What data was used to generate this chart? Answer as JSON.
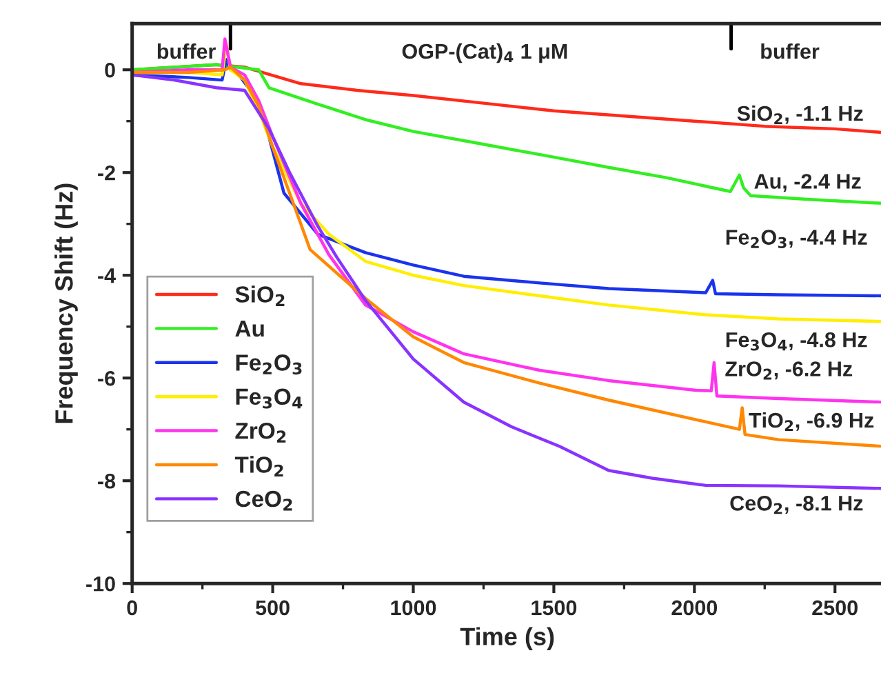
{
  "chart_data": {
    "type": "line",
    "xlabel": "Time (s)",
    "ylabel": "Frequency Shift (Hz)",
    "xlim": [
      0,
      2670
    ],
    "xticks": [
      0,
      500,
      1000,
      1500,
      2000,
      2500
    ],
    "ylim": [
      -10,
      0.9
    ],
    "yticks": [
      0,
      -2,
      -4,
      -6,
      -8,
      -10
    ],
    "grid": false,
    "legend": "left",
    "marker": "none",
    "line_style": "solid",
    "annotations": [
      "buffer",
      "OGP-(Cat)$_{4}$ 1 μM",
      "buffer",
      "SiO$_{2}$, -1.1 Hz",
      "Au, -2.4 Hz",
      "Fe$_{2}$O$_{3}$, -4.4 Hz",
      "Fe$_{3}$O$_{4}$, -4.8 Hz",
      "ZrO$_{2}$, -6.2 Hz",
      "TiO$_{2}$, -6.9 Hz",
      "CeO$_{2}$, -8.1 Hz"
    ],
    "series": [
      {
        "name": "SiO$_{2}$",
        "color": "#ff2a1a",
        "x": [
          0,
          150,
          300,
          400,
          600,
          800,
          1000,
          1250,
          1500,
          1750,
          2000,
          2250,
          2500,
          2670
        ],
        "values": [
          0.0,
          0.05,
          0.1,
          0.05,
          -0.27,
          -0.4,
          -0.5,
          -0.65,
          -0.8,
          -0.9,
          -1.0,
          -1.1,
          -1.15,
          -1.22
        ]
      },
      {
        "name": "Au",
        "color": "#33ee22",
        "x": [
          0,
          150,
          300,
          450,
          487,
          650,
          830,
          1000,
          1250,
          1500,
          1695,
          1900,
          2128,
          2160,
          2175,
          2200,
          2400,
          2670
        ],
        "values": [
          0.0,
          0.05,
          0.1,
          0.0,
          -0.35,
          -0.65,
          -0.97,
          -1.2,
          -1.45,
          -1.7,
          -1.9,
          -2.1,
          -2.37,
          -2.05,
          -2.3,
          -2.45,
          -2.52,
          -2.6
        ]
      },
      {
        "name": "Fe$_{2}$O$_{3}$",
        "color": "#1a33ee",
        "x": [
          0,
          200,
          320,
          335,
          350,
          380,
          420,
          470,
          540,
          660,
          830,
          1000,
          1180,
          1450,
          1695,
          2040,
          2065,
          2075,
          2300,
          2670
        ],
        "values": [
          -0.1,
          -0.15,
          -0.2,
          0.2,
          0.0,
          -0.1,
          -0.4,
          -0.97,
          -2.4,
          -3.2,
          -3.56,
          -3.8,
          -4.02,
          -4.15,
          -4.26,
          -4.34,
          -4.1,
          -4.36,
          -4.38,
          -4.4
        ]
      },
      {
        "name": "Fe$_{3}$O$_{4}$",
        "color": "#ffee00",
        "x": [
          0,
          200,
          320,
          335,
          350,
          400,
          450,
          500,
          600,
          700,
          830,
          1000,
          1180,
          1450,
          1695,
          2040,
          2300,
          2670
        ],
        "values": [
          -0.05,
          -0.05,
          -0.1,
          0.5,
          0.0,
          -0.2,
          -0.8,
          -1.5,
          -2.6,
          -3.2,
          -3.73,
          -4.0,
          -4.2,
          -4.4,
          -4.58,
          -4.77,
          -4.85,
          -4.9
        ]
      },
      {
        "name": "ZrO$_{2}$",
        "color": "#ff33ee",
        "x": [
          0,
          200,
          320,
          330,
          350,
          400,
          450,
          500,
          600,
          700,
          830,
          1000,
          1180,
          1450,
          1695,
          2005,
          2060,
          2070,
          2080,
          2300,
          2670
        ],
        "values": [
          -0.05,
          0.0,
          0.0,
          0.6,
          0.05,
          -0.1,
          -0.6,
          -1.3,
          -2.6,
          -3.6,
          -4.58,
          -5.1,
          -5.53,
          -5.85,
          -6.05,
          -6.24,
          -6.25,
          -5.7,
          -6.35,
          -6.4,
          -6.47
        ]
      },
      {
        "name": "TiO$_{2}$",
        "color": "#ff8800",
        "x": [
          0,
          200,
          330,
          350,
          400,
          450,
          500,
          600,
          633,
          830,
          1000,
          1180,
          1450,
          1695,
          2160,
          2170,
          2180,
          2300,
          2670
        ],
        "values": [
          -0.05,
          -0.05,
          0.0,
          0.05,
          -0.2,
          -0.7,
          -1.5,
          -3.0,
          -3.5,
          -4.45,
          -5.2,
          -5.7,
          -6.1,
          -6.43,
          -7.0,
          -6.58,
          -7.1,
          -7.2,
          -7.33
        ]
      },
      {
        "name": "CeO$_{2}$",
        "color": "#8833ff",
        "x": [
          0,
          150,
          300,
          400,
          487,
          560,
          660,
          727,
          830,
          1000,
          1180,
          1350,
          1520,
          1695,
          1850,
          2040,
          2300,
          2670
        ],
        "values": [
          -0.1,
          -0.2,
          -0.35,
          -0.4,
          -1.15,
          -2.0,
          -3.04,
          -3.64,
          -4.49,
          -5.63,
          -6.47,
          -6.95,
          -7.33,
          -7.8,
          -7.95,
          -8.09,
          -8.1,
          -8.15
        ]
      }
    ]
  }
}
